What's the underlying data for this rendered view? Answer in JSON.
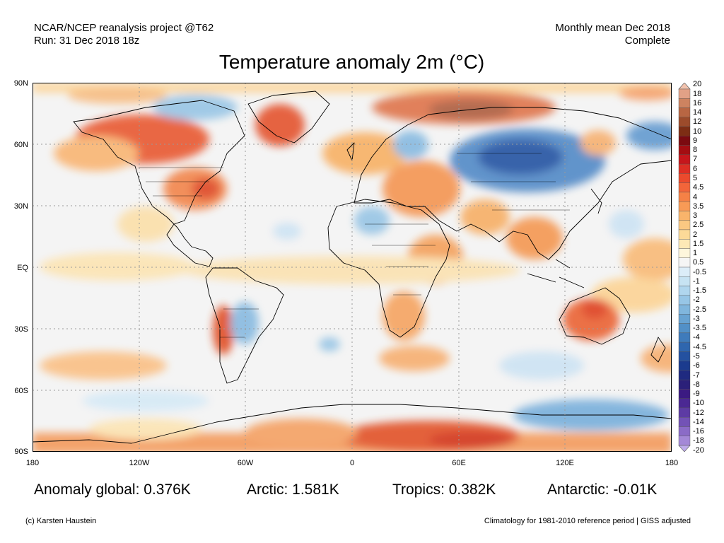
{
  "header": {
    "project": "NCAR/NCEP reanalysis project @T62",
    "run": "Run: 31 Dec 2018 18z",
    "period": "Monthly mean Dec 2018",
    "status": "Complete"
  },
  "title": "Temperature anomaly 2m (°C)",
  "lat_ticks": [
    "90N",
    "60N",
    "30N",
    "EQ",
    "30S",
    "60S",
    "90S"
  ],
  "lon_ticks": [
    "180",
    "120W",
    "60W",
    "0",
    "60E",
    "120E",
    "180"
  ],
  "colorbar": {
    "labels": [
      "20",
      "18",
      "16",
      "14",
      "12",
      "10",
      "9",
      "8",
      "7",
      "6",
      "5",
      "4.5",
      "4",
      "3.5",
      "3",
      "2.5",
      "2",
      "1.5",
      "1",
      "0.5",
      "-0.5",
      "-1",
      "-1.5",
      "-2",
      "-2.5",
      "-3",
      "-3.5",
      "-4",
      "-4.5",
      "-5",
      "-6",
      "-7",
      "-8",
      "-9",
      "-10",
      "-12",
      "-14",
      "-16",
      "-18",
      "-20"
    ],
    "colors": [
      "#f2c3ae",
      "#e2a186",
      "#cd8360",
      "#b86643",
      "#9c4b2b",
      "#7d2d14",
      "#7b0a10",
      "#a40d12",
      "#c6161c",
      "#dd2e24",
      "#eb4a2d",
      "#f2653a",
      "#f58146",
      "#f89a56",
      "#f9b46b",
      "#fbc882",
      "#fcda98",
      "#fde9b6",
      "#fef6dc",
      "#f5f5f5",
      "#dcedf8",
      "#c7e3f3",
      "#b0d6ee",
      "#97c6e6",
      "#80b6dd",
      "#68a3d2",
      "#5290c7",
      "#3f7bbb",
      "#2f66ae",
      "#2451a0",
      "#1b3b8e",
      "#1f2a80",
      "#2b2079",
      "#3b1a82",
      "#4b2893",
      "#5d3ba4",
      "#7352b6",
      "#8b6bc7",
      "#a488d7",
      "#beabea"
    ]
  },
  "stats": {
    "global": "Anomaly global: 0.376K",
    "arctic": "Arctic: 1.581K",
    "tropics": "Tropics: 0.382K",
    "antarctic": "Antarctic: -0.01K"
  },
  "footer": {
    "credit": "(c) Karsten Haustein",
    "climatology": "Climatology for 1981-2010 reference period | GISS adjusted"
  }
}
